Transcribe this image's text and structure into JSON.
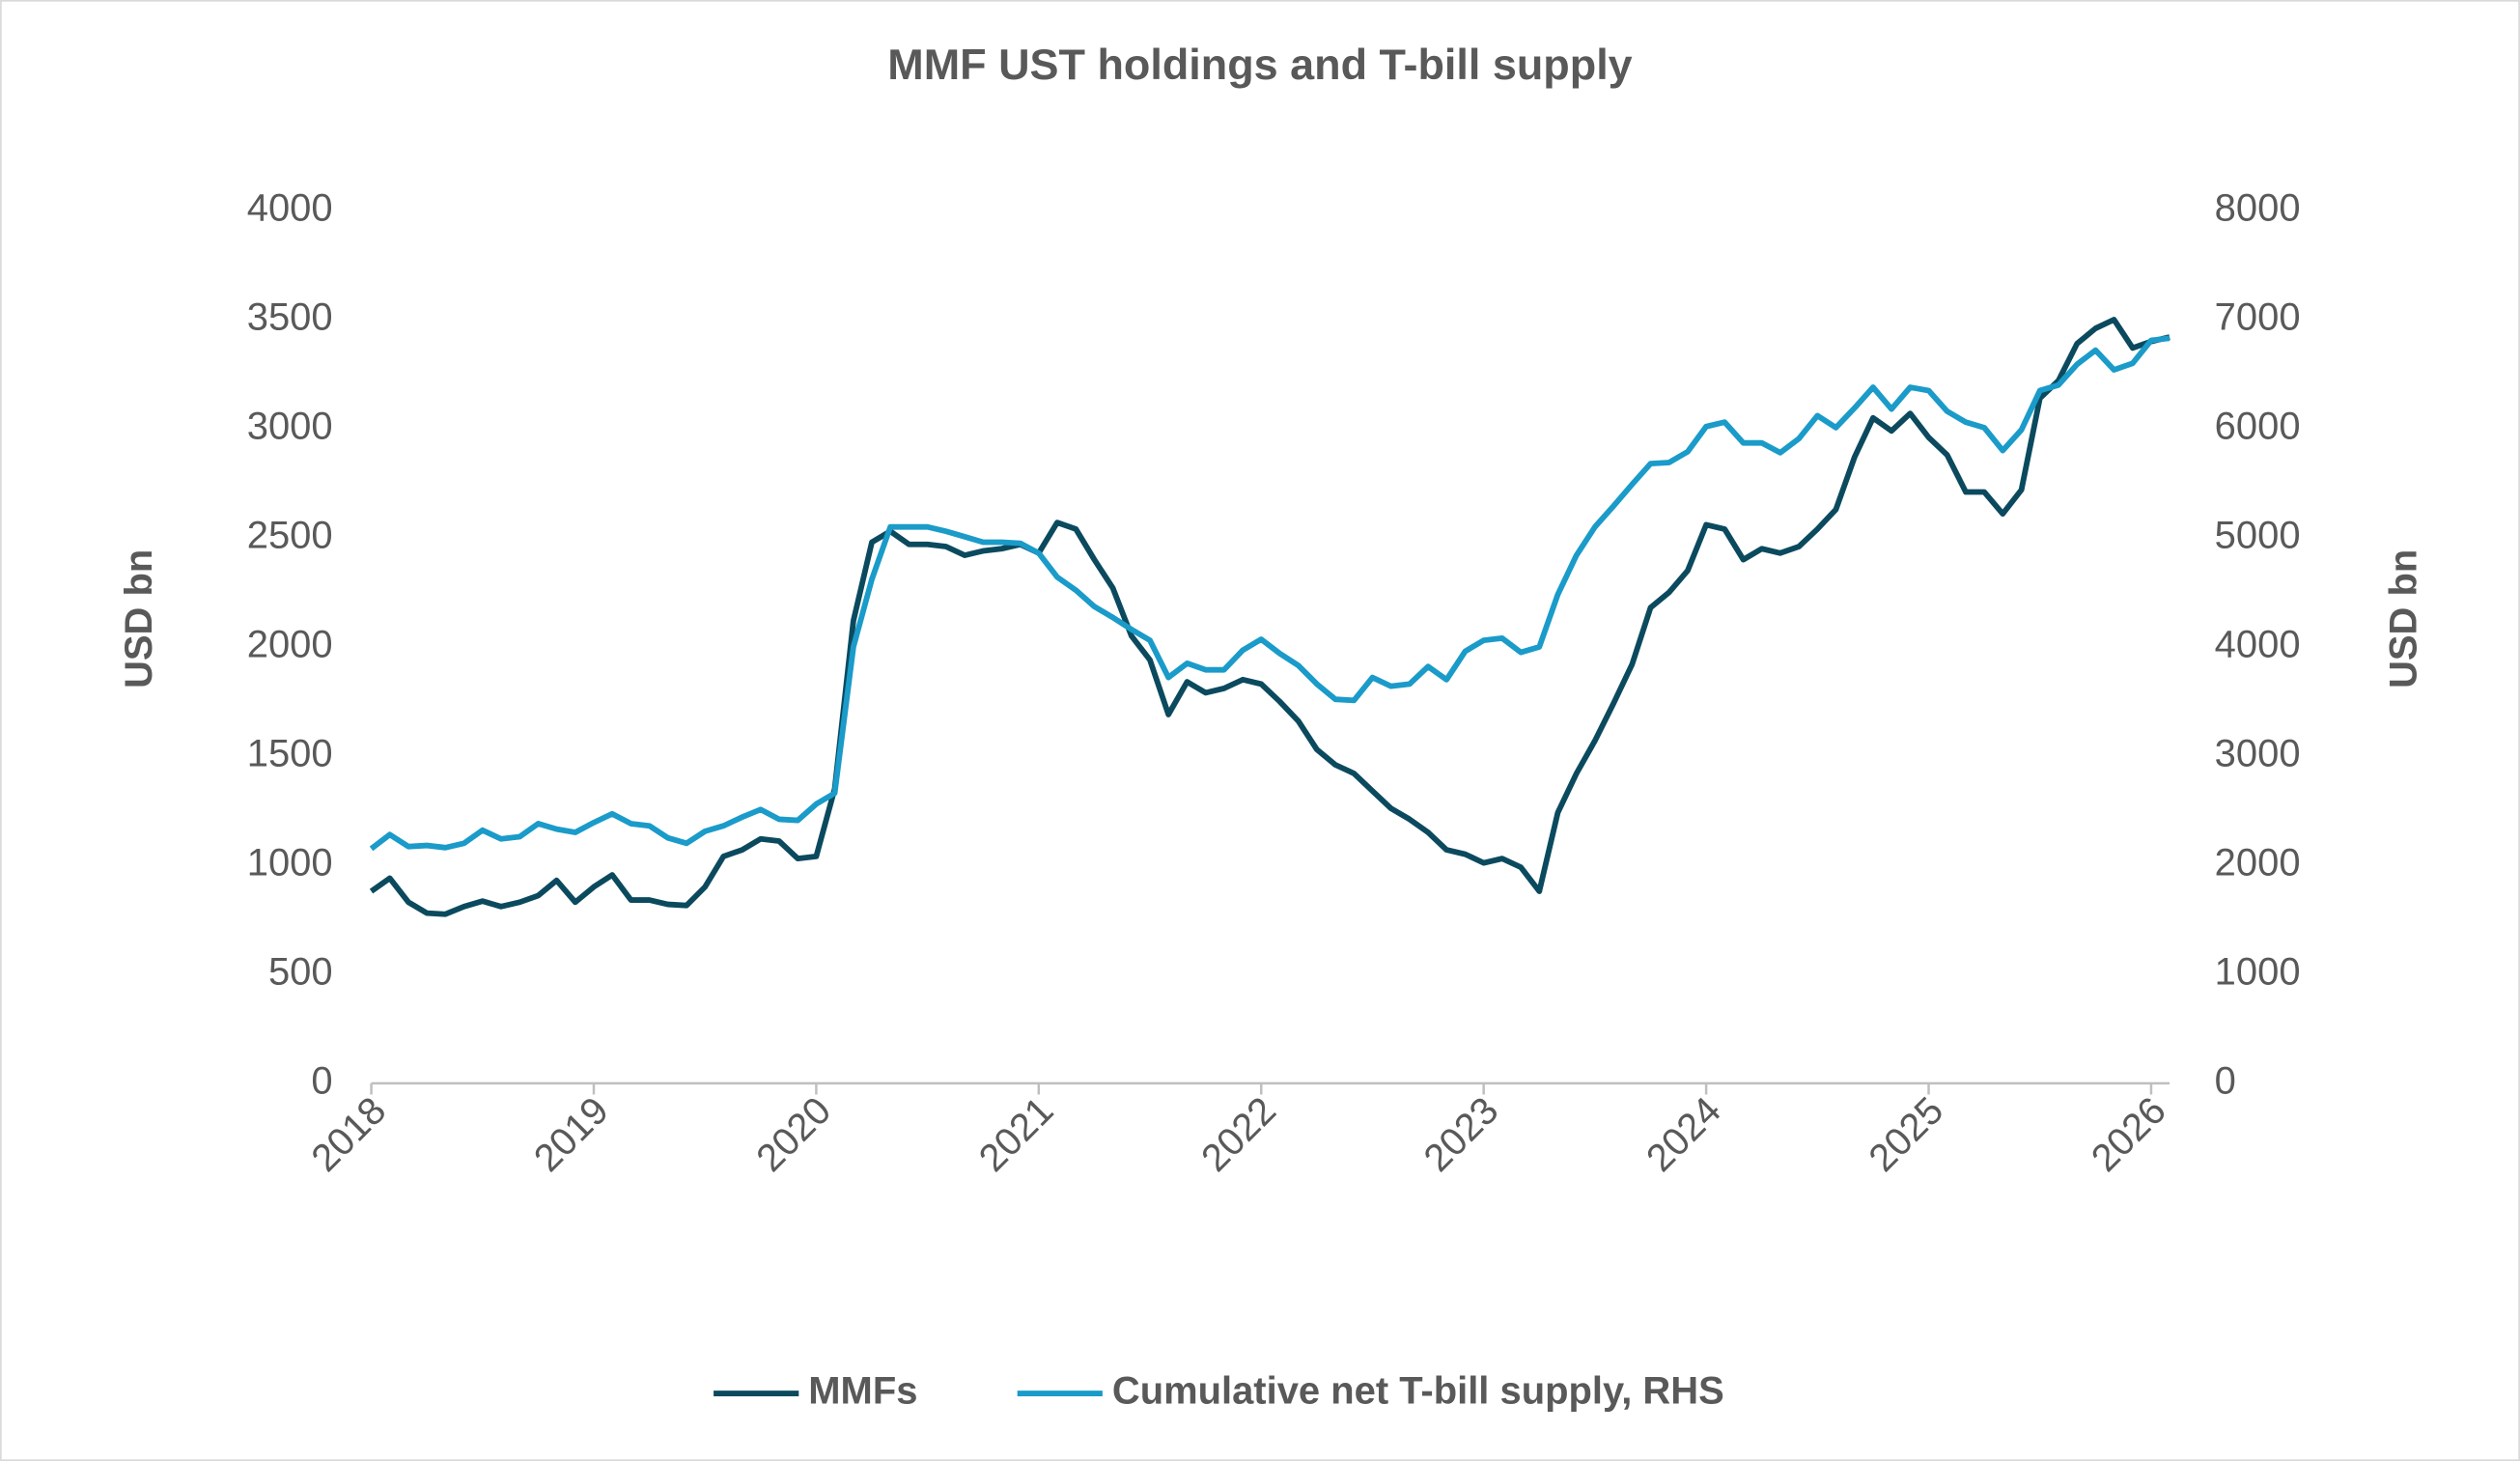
{
  "chart_data": {
    "type": "line",
    "title": "MMF UST holdings and T-bill supply",
    "y_label": "USD bn",
    "y2_label": "USD bn",
    "x": [
      2018,
      2018.083,
      2018.167,
      2018.25,
      2018.333,
      2018.417,
      2018.5,
      2018.583,
      2018.667,
      2018.75,
      2018.833,
      2018.917,
      2019,
      2019.083,
      2019.167,
      2019.25,
      2019.333,
      2019.417,
      2019.5,
      2019.583,
      2019.667,
      2019.75,
      2019.833,
      2019.917,
      2020,
      2020.083,
      2020.167,
      2020.25,
      2020.333,
      2020.417,
      2020.5,
      2020.583,
      2020.667,
      2020.75,
      2020.833,
      2020.917,
      2021,
      2021.083,
      2021.167,
      2021.25,
      2021.333,
      2021.417,
      2021.5,
      2021.583,
      2021.667,
      2021.75,
      2021.833,
      2021.917,
      2022,
      2022.083,
      2022.167,
      2022.25,
      2022.333,
      2022.417,
      2022.5,
      2022.583,
      2022.667,
      2022.75,
      2022.833,
      2022.917,
      2023,
      2023.083,
      2023.167,
      2023.25,
      2023.333,
      2023.417,
      2023.5,
      2023.583,
      2023.667,
      2023.75,
      2023.833,
      2023.917,
      2024,
      2024.083,
      2024.167,
      2024.25,
      2024.333,
      2024.417,
      2024.5,
      2024.583,
      2024.667,
      2024.75,
      2024.833,
      2024.917,
      2025,
      2025.083,
      2025.167,
      2025.25,
      2025.333,
      2025.417,
      2025.5,
      2025.583,
      2025.667,
      2025.75,
      2025.833,
      2025.917,
      2026,
      2026.083
    ],
    "series": [
      {
        "name": "MMFs",
        "color": "#0b4a5e",
        "axis": "y",
        "values": [
          880,
          940,
          830,
          780,
          775,
          810,
          835,
          810,
          830,
          860,
          930,
          830,
          900,
          955,
          840,
          840,
          820,
          815,
          900,
          1040,
          1070,
          1120,
          1110,
          1030,
          1040,
          1350,
          2120,
          2480,
          2530,
          2470,
          2470,
          2460,
          2420,
          2440,
          2450,
          2470,
          2430,
          2570,
          2540,
          2400,
          2270,
          2050,
          1940,
          1690,
          1840,
          1790,
          1810,
          1850,
          1830,
          1750,
          1660,
          1530,
          1460,
          1420,
          1340,
          1260,
          1210,
          1150,
          1070,
          1050,
          1010,
          1030,
          990,
          880,
          1240,
          1420,
          1570,
          1740,
          1920,
          2180,
          2250,
          2350,
          2560,
          2540,
          2400,
          2450,
          2430,
          2460,
          2540,
          2630,
          2870,
          3050,
          2990,
          3070,
          2960,
          2880,
          2710,
          2710,
          2610,
          2720,
          3140,
          3220,
          3390,
          3460,
          3500,
          3370,
          3400,
          3420
        ]
      },
      {
        "name": "Cumulative net T-bill supply, RHS",
        "color": "#1a9bc9",
        "axis": "y2",
        "values": [
          2150,
          2280,
          2170,
          2180,
          2160,
          2200,
          2320,
          2240,
          2260,
          2380,
          2330,
          2300,
          2390,
          2470,
          2380,
          2360,
          2250,
          2200,
          2310,
          2360,
          2440,
          2510,
          2420,
          2410,
          2560,
          2660,
          4000,
          4620,
          5100,
          5100,
          5100,
          5060,
          5010,
          4960,
          4960,
          4950,
          4860,
          4640,
          4520,
          4370,
          4270,
          4160,
          4060,
          3720,
          3850,
          3790,
          3790,
          3970,
          4070,
          3940,
          3830,
          3660,
          3520,
          3510,
          3720,
          3640,
          3660,
          3820,
          3700,
          3960,
          4060,
          4080,
          3950,
          4000,
          4480,
          4840,
          5100,
          5290,
          5490,
          5680,
          5690,
          5790,
          6020,
          6060,
          5870,
          5870,
          5780,
          5910,
          6120,
          6010,
          6190,
          6380,
          6180,
          6380,
          6350,
          6160,
          6060,
          6010,
          5800,
          5990,
          6350,
          6400,
          6590,
          6720,
          6540,
          6600,
          6810,
          6830
        ]
      }
    ],
    "xlim": [
      2018,
      2026.083
    ],
    "xticks": [
      2018,
      2019,
      2020,
      2021,
      2022,
      2023,
      2024,
      2025,
      2026
    ],
    "ylim": [
      0,
      4000
    ],
    "yticks": [
      0,
      500,
      1000,
      1500,
      2000,
      2500,
      3000,
      3500,
      4000
    ],
    "y2lim": [
      0,
      8000
    ],
    "y2ticks": [
      0,
      1000,
      2000,
      3000,
      4000,
      5000,
      6000,
      7000,
      8000
    ],
    "grid": false,
    "legend": "bottom"
  }
}
